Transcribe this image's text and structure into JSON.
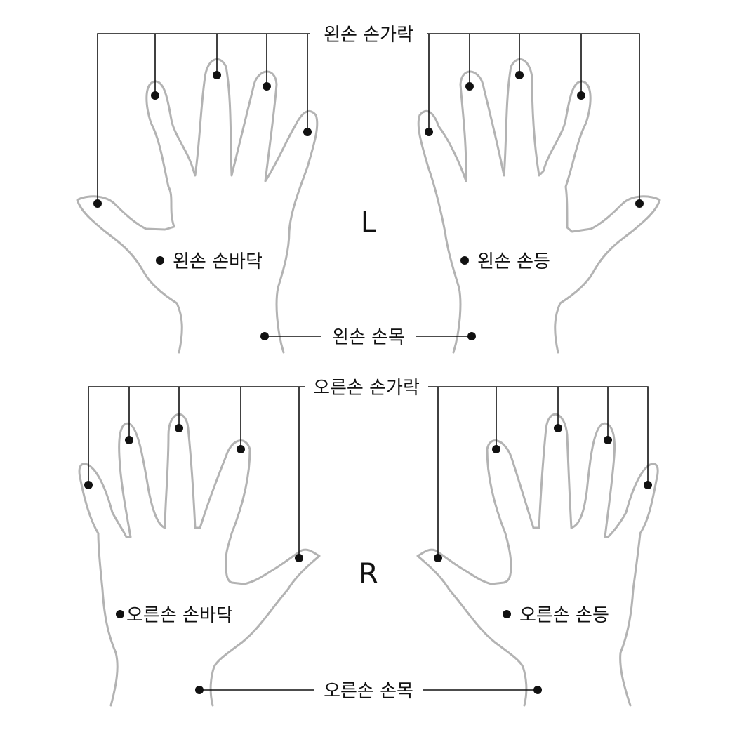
{
  "colors": {
    "outline": "#b3b3b3",
    "ink": "#111111",
    "background": "#ffffff"
  },
  "left_section": {
    "side_letter": "L",
    "fingers_label": "왼손 손가락",
    "palm_label": "왼손 손바닥",
    "back_label": "왼손 손등",
    "wrist_label": "왼손 손목"
  },
  "right_section": {
    "side_letter": "R",
    "fingers_label": "오른손 손가락",
    "palm_label": "오른손 손바닥",
    "back_label": "오른손 손등",
    "wrist_label": "오른손 손목"
  }
}
